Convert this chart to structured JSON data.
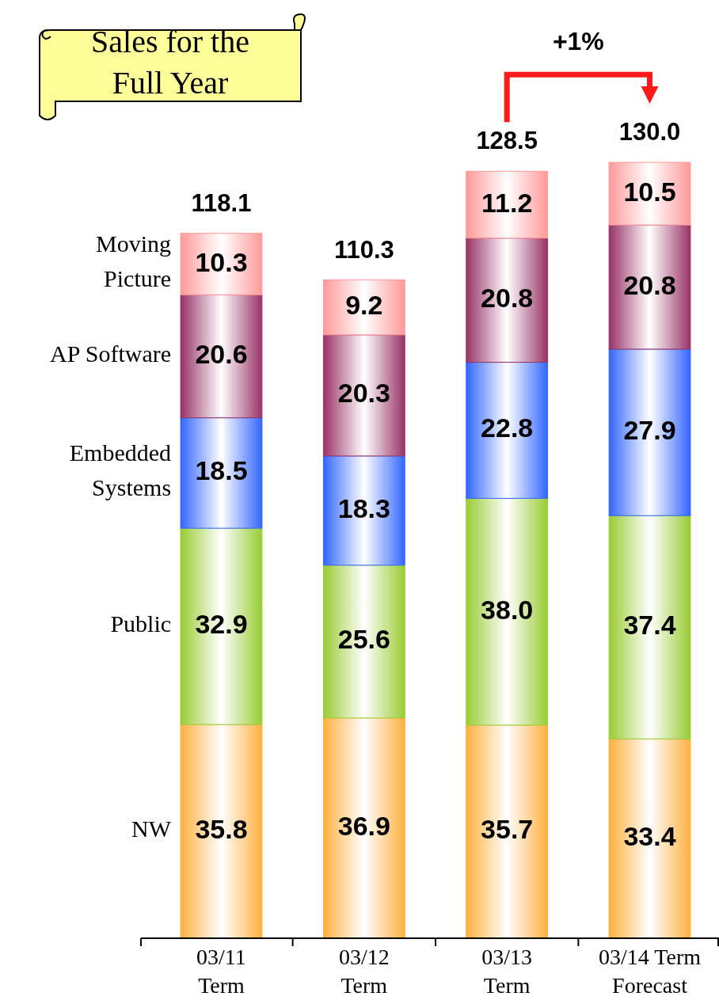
{
  "chart_data": {
    "type": "bar",
    "stacked": true,
    "title": "Sales for the\nFull Year",
    "categories": [
      "03/11\nTerm",
      "03/12\nTerm",
      "03/13\nTerm",
      "03/14 Term\nForecast"
    ],
    "series": [
      {
        "name": "NW",
        "color": "#ffb040",
        "values": [
          35.8,
          36.9,
          35.7,
          33.4
        ],
        "value_labels": [
          "35.8",
          "36.9",
          "35.7",
          "33.4"
        ]
      },
      {
        "name": "Public",
        "color": "#99cc33",
        "values": [
          32.9,
          25.6,
          38.0,
          37.4
        ],
        "value_labels": [
          "32.9",
          "25.6",
          "38.0",
          "37.4"
        ]
      },
      {
        "name": "Embedded\nSystems",
        "color": "#3366ff",
        "values": [
          18.5,
          18.3,
          22.8,
          27.9
        ],
        "value_labels": [
          "18.5",
          "18.3",
          "22.8",
          "27.9"
        ]
      },
      {
        "name": "AP Software",
        "color": "#993366",
        "values": [
          20.6,
          20.3,
          20.8,
          20.8
        ],
        "value_labels": [
          "20.6",
          "20.3",
          "20.8",
          "20.8"
        ]
      },
      {
        "name": "Moving\nPicture",
        "color": "#ff9999",
        "values": [
          10.3,
          9.2,
          11.2,
          10.5
        ],
        "value_labels": [
          "10.3",
          "9.2",
          "11.2",
          "10.5"
        ]
      }
    ],
    "totals": [
      "118.1",
      "110.3",
      "128.5",
      "130.0"
    ],
    "annotations": [
      "+1%"
    ],
    "legend": false
  }
}
